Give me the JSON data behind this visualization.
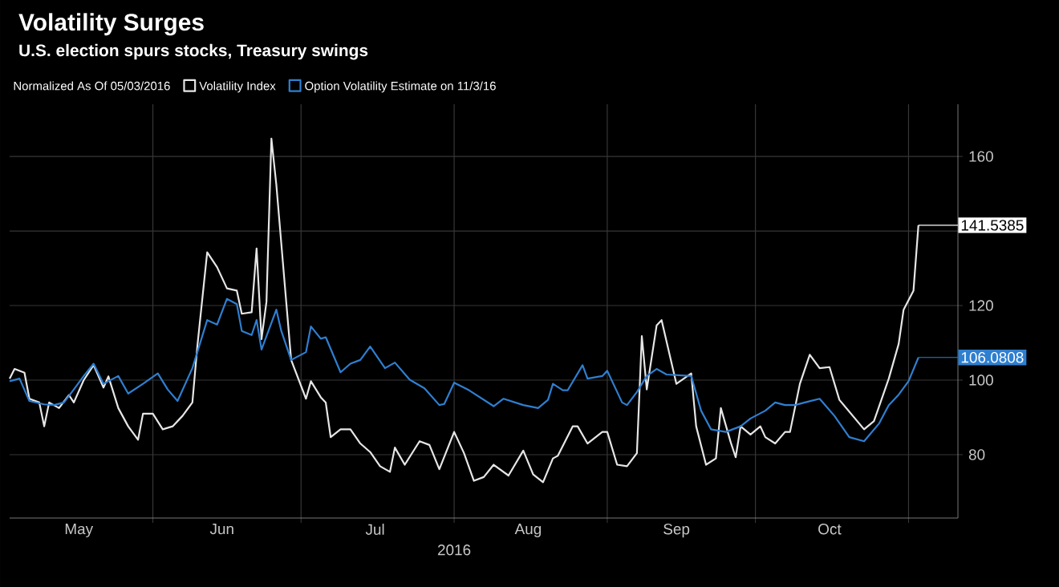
{
  "chart_data": {
    "type": "line",
    "title": "Volatility Surges",
    "subtitle": "U.S. election spurs stocks, Treasury swings",
    "legend_title": "Normalized As Of 05/03/2016",
    "xlabel": "2016",
    "series": [
      {
        "name": "Volatility Index",
        "color": "#e6e6e6",
        "x": [
          "2016-05-03",
          "2016-05-04",
          "2016-05-06",
          "2016-05-07",
          "2016-05-09",
          "2016-05-10",
          "2016-05-11",
          "2016-05-13",
          "2016-05-15",
          "2016-05-16",
          "2016-05-18",
          "2016-05-20",
          "2016-05-22",
          "2016-05-23",
          "2016-05-25",
          "2016-05-27",
          "2016-05-29",
          "2016-05-30",
          "2016-06-01",
          "2016-06-03",
          "2016-06-05",
          "2016-06-07",
          "2016-06-09",
          "2016-06-10",
          "2016-06-12",
          "2016-06-14",
          "2016-06-16",
          "2016-06-18",
          "2016-06-19",
          "2016-06-21",
          "2016-06-22",
          "2016-06-23",
          "2016-06-24",
          "2016-06-25",
          "2016-06-26",
          "2016-06-28",
          "2016-06-29",
          "2016-07-02",
          "2016-07-03",
          "2016-07-05",
          "2016-07-06",
          "2016-07-07",
          "2016-07-09",
          "2016-07-11",
          "2016-07-13",
          "2016-07-15",
          "2016-07-17",
          "2016-07-19",
          "2016-07-20",
          "2016-07-22",
          "2016-07-25",
          "2016-07-27",
          "2016-07-29",
          "2016-08-01",
          "2016-08-03",
          "2016-08-05",
          "2016-08-07",
          "2016-08-09",
          "2016-08-12",
          "2016-08-15",
          "2016-08-17",
          "2016-08-19",
          "2016-08-21",
          "2016-08-22",
          "2016-08-25",
          "2016-08-26",
          "2016-08-28",
          "2016-08-31",
          "2016-09-01",
          "2016-09-03",
          "2016-09-05",
          "2016-09-07",
          "2016-09-08",
          "2016-09-09",
          "2016-09-11",
          "2016-09-12",
          "2016-09-14",
          "2016-09-15",
          "2016-09-18",
          "2016-09-19",
          "2016-09-21",
          "2016-09-23",
          "2016-09-24",
          "2016-09-26",
          "2016-09-27",
          "2016-09-28",
          "2016-09-30",
          "2016-10-02",
          "2016-10-03",
          "2016-10-05",
          "2016-10-07",
          "2016-10-08",
          "2016-10-10",
          "2016-10-12",
          "2016-10-14",
          "2016-10-16",
          "2016-10-18",
          "2016-10-23",
          "2016-10-25",
          "2016-10-28",
          "2016-10-30",
          "2016-10-31",
          "2016-11-02",
          "2016-11-03"
        ],
        "values": [
          100.4,
          103,
          102,
          95,
          94,
          87.6,
          94,
          92.5,
          96,
          94,
          100,
          104,
          98,
          101,
          92.5,
          87.6,
          84,
          91,
          91,
          86.8,
          87.6,
          90.4,
          94,
          109,
          134.3,
          130.3,
          124.6,
          124,
          117.8,
          118.2,
          135.3,
          111,
          121,
          164.8,
          152.4,
          121,
          105.4,
          95,
          99.7,
          95.4,
          94,
          84.7,
          86.8,
          86.8,
          83,
          80.7,
          76.9,
          75.4,
          81.9,
          77.3,
          83.6,
          82.6,
          76.1,
          86.1,
          80.4,
          73,
          74,
          77.3,
          74.4,
          81.1,
          74.7,
          72.6,
          79,
          79.7,
          87.6,
          87.6,
          83,
          86.1,
          86.1,
          77.3,
          76.9,
          80.4,
          111.8,
          97.5,
          114.7,
          116.1,
          104.7,
          99,
          101.8,
          87.6,
          77.3,
          79,
          92.5,
          83.3,
          79.3,
          87.6,
          85.4,
          87.6,
          84.7,
          83,
          86.1,
          86.1,
          99,
          106.8,
          103.2,
          103.5,
          94.7,
          86.8,
          89,
          100.4,
          109.7,
          118.9,
          124,
          141.5385
        ]
      },
      {
        "name": "Option Volatility Estimate on 11/3/16",
        "color": "#2f7fd0",
        "x": [
          "2016-05-03",
          "2016-05-05",
          "2016-05-07",
          "2016-05-10",
          "2016-05-12",
          "2016-05-14",
          "2016-05-16",
          "2016-05-18",
          "2016-05-20",
          "2016-05-22",
          "2016-05-25",
          "2016-05-27",
          "2016-05-30",
          "2016-06-02",
          "2016-06-04",
          "2016-06-06",
          "2016-06-09",
          "2016-06-12",
          "2016-06-14",
          "2016-06-16",
          "2016-06-18",
          "2016-06-19",
          "2016-06-21",
          "2016-06-22",
          "2016-06-23",
          "2016-06-26",
          "2016-06-27",
          "2016-06-29",
          "2016-07-02",
          "2016-07-03",
          "2016-07-05",
          "2016-07-06",
          "2016-07-09",
          "2016-07-11",
          "2016-07-13",
          "2016-07-15",
          "2016-07-18",
          "2016-07-20",
          "2016-07-23",
          "2016-07-26",
          "2016-07-29",
          "2016-07-30",
          "2016-08-01",
          "2016-08-04",
          "2016-08-09",
          "2016-08-11",
          "2016-08-15",
          "2016-08-18",
          "2016-08-20",
          "2016-08-21",
          "2016-08-23",
          "2016-08-24",
          "2016-08-27",
          "2016-08-28",
          "2016-08-31",
          "2016-09-01",
          "2016-09-04",
          "2016-09-05",
          "2016-09-07",
          "2016-09-09",
          "2016-09-11",
          "2016-09-13",
          "2016-09-18",
          "2016-09-20",
          "2016-09-22",
          "2016-09-25",
          "2016-09-28",
          "2016-09-30",
          "2016-10-03",
          "2016-10-05",
          "2016-10-07",
          "2016-10-09",
          "2016-10-11",
          "2016-10-14",
          "2016-10-17",
          "2016-10-20",
          "2016-10-23",
          "2016-10-26",
          "2016-10-28",
          "2016-10-30",
          "2016-11-01",
          "2016-11-03"
        ],
        "values": [
          99.7,
          100.4,
          94.4,
          93.5,
          93.3,
          94,
          97.5,
          101.1,
          104.4,
          99,
          101.1,
          96.4,
          99,
          101.8,
          97.5,
          94.4,
          103.2,
          116.1,
          114.9,
          121.8,
          120.4,
          113.2,
          112.1,
          116.1,
          108.2,
          118.9,
          113.2,
          105.4,
          107.5,
          114.4,
          111.1,
          111.5,
          102.1,
          104.4,
          105.4,
          109,
          103.2,
          104.7,
          100.1,
          97.8,
          93.3,
          93.6,
          99.3,
          97.3,
          93,
          95,
          93.3,
          92.5,
          94.7,
          99,
          97.3,
          97.3,
          104,
          100.4,
          101.1,
          102.5,
          94,
          93.3,
          96.8,
          101.1,
          103,
          101.5,
          101.1,
          91.8,
          86.8,
          86.1,
          87.6,
          89.7,
          91.8,
          94,
          93.3,
          93.3,
          94,
          95,
          90.4,
          84.7,
          83.6,
          88.3,
          93.3,
          96.1,
          99.7,
          106.0808
        ]
      }
    ],
    "annotations": [
      {
        "text": "141.5385",
        "x": "2016-11-03",
        "y": 141.5385
      },
      {
        "text": "106.0808",
        "x": "2016-11-03",
        "y": 106.0808
      }
    ],
    "xlim": [
      "2016-05-03",
      "2016-11-11"
    ],
    "xticks": [
      {
        "value": "2016-05-17",
        "label": "May"
      },
      {
        "value": "2016-06-01",
        "label": null
      },
      {
        "value": "2016-06-15",
        "label": "Jun"
      },
      {
        "value": "2016-07-01",
        "label": null
      },
      {
        "value": "2016-07-16",
        "label": "Jul"
      },
      {
        "value": "2016-08-01",
        "label": null
      },
      {
        "value": "2016-08-16",
        "label": "Aug"
      },
      {
        "value": "2016-09-01",
        "label": null
      },
      {
        "value": "2016-09-15",
        "label": "Sep"
      },
      {
        "value": "2016-10-01",
        "label": null
      },
      {
        "value": "2016-10-16",
        "label": "Oct"
      },
      {
        "value": "2016-11-01",
        "label": null
      }
    ],
    "ylim": [
      63,
      174
    ],
    "yticks": [
      80,
      100,
      120,
      {
        "value": 140,
        "label": null
      },
      160
    ],
    "grid": true,
    "legend": "top",
    "marker": "none",
    "line_style": "solid"
  }
}
